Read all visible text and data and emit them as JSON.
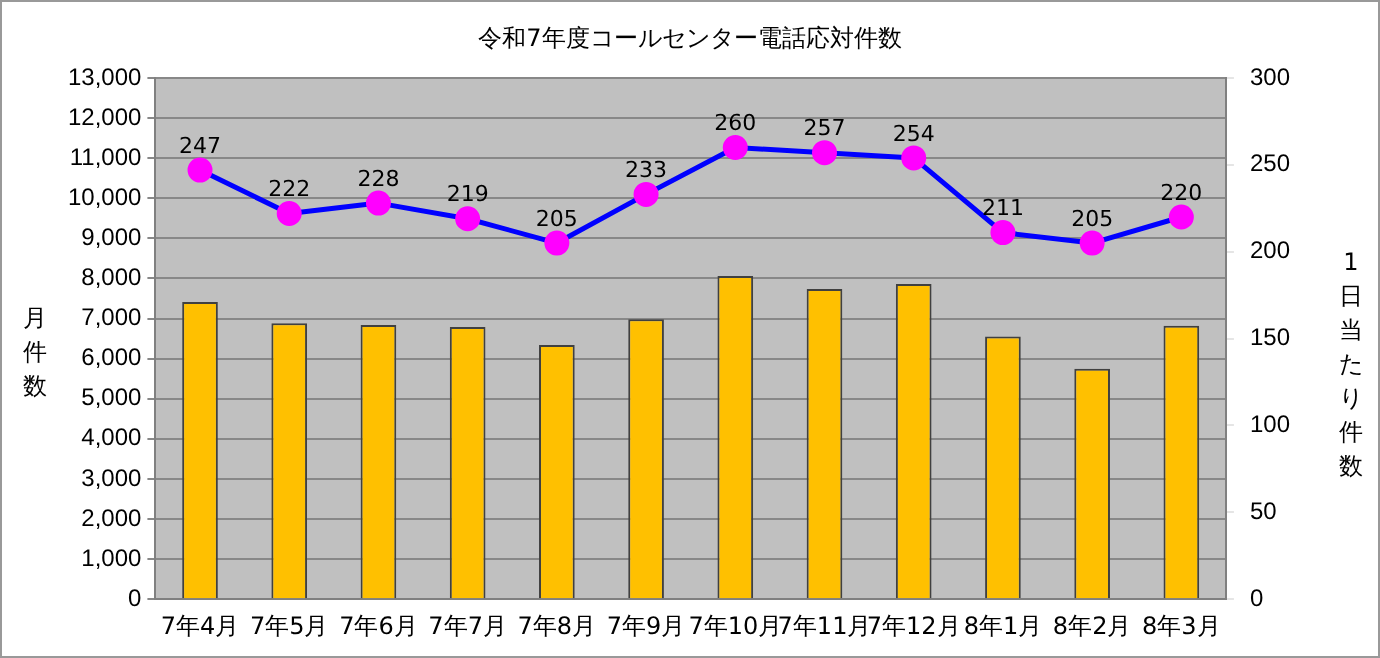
{
  "chart_data": {
    "type": "bar",
    "title": "令和7年度コールセンター電話応対件数",
    "ylabel": "月件数",
    "y2label": "1日当たり件数",
    "categories": [
      "7年4月",
      "7年5月",
      "7年6月",
      "7年7月",
      "7年8月",
      "7年9月",
      "7年10月",
      "7年11月",
      "7年12月",
      "8年1月",
      "8年2月",
      "8年3月"
    ],
    "series": [
      {
        "color": "#ffc000",
        "values": [
          7410,
          6880,
          6840,
          6790,
          6340,
          6980,
          8060,
          7740,
          7860,
          6550,
          5750,
          6820
        ]
      },
      {
        "type": "line",
        "axis": "y2",
        "color": "#0000ff",
        "marker": "circle",
        "values": [
          247,
          222,
          228,
          219,
          205,
          233,
          260,
          257,
          254,
          211,
          205,
          220
        ],
        "value_labels": [
          "247",
          "222",
          "228",
          "219",
          "205",
          "233",
          "260",
          "257",
          "254",
          "211",
          "205",
          "220"
        ]
      }
    ],
    "ylim": [
      0,
      13000
    ],
    "yticks": [
      {
        "value": 0,
        "label": "0"
      },
      {
        "value": 1000,
        "label": "1,000"
      },
      {
        "value": 2000,
        "label": "2,000"
      },
      {
        "value": 3000,
        "label": "3,000"
      },
      {
        "value": 4000,
        "label": "4,000"
      },
      {
        "value": 5000,
        "label": "5,000"
      },
      {
        "value": 6000,
        "label": "6,000"
      },
      {
        "value": 7000,
        "label": "7,000"
      },
      {
        "value": 8000,
        "label": "8,000"
      },
      {
        "value": 9000,
        "label": "9,000"
      },
      {
        "value": 10000,
        "label": "10,000"
      },
      {
        "value": 11000,
        "label": "11,000"
      },
      {
        "value": 12000,
        "label": "12,000"
      },
      {
        "value": 13000,
        "label": "13,000"
      }
    ],
    "y2lim": [
      0,
      300
    ],
    "y2ticks": [
      0,
      50,
      100,
      150,
      200,
      250,
      300
    ],
    "grid": "y",
    "legend": false
  }
}
